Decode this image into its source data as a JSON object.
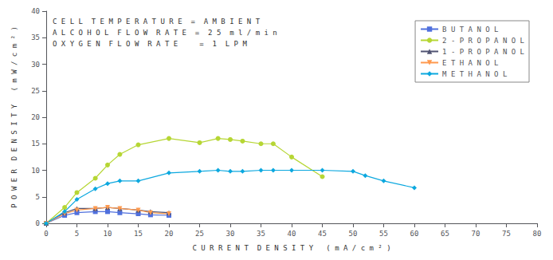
{
  "chart_data": {
    "type": "line",
    "xlabel": "C U R R E N T  D E N S I T Y   ( m A / c m ² )",
    "ylabel": "P O W E R  D E N S I T Y   ( m W / c m ² )",
    "annotations": [
      "C E L L  T E M P E R A T U R E  =  A M B I E N T",
      "A L C O H O L  F L O W  R A T E  =  2 5  m l / m i n",
      "O X Y G E N  F L O W  R A T E     =  1  L P M"
    ],
    "xlim": [
      0,
      80
    ],
    "ylim": [
      0,
      40
    ],
    "xticks": [
      0,
      5,
      10,
      15,
      20,
      25,
      30,
      35,
      40,
      45,
      50,
      55,
      60,
      65,
      70,
      75,
      80
    ],
    "yticks": [
      0,
      5,
      10,
      15,
      20,
      25,
      30,
      35,
      40
    ],
    "grid": false,
    "legend": "upper right",
    "series": [
      {
        "name": "B U T A N O L",
        "marker": "square",
        "x": [
          0,
          3,
          5,
          8,
          10,
          12,
          15,
          17,
          20
        ],
        "values": [
          0,
          1.5,
          2.0,
          2.2,
          2.2,
          2.0,
          1.8,
          1.6,
          1.5
        ]
      },
      {
        "name": "2 - P R O P A N O L",
        "marker": "circle",
        "x": [
          0,
          3,
          5,
          8,
          10,
          12,
          15,
          20,
          25,
          28,
          30,
          32,
          35,
          37,
          40,
          45
        ],
        "values": [
          0,
          3.0,
          5.8,
          8.5,
          11.0,
          13.0,
          14.8,
          16.0,
          15.2,
          16.0,
          15.8,
          15.5,
          15.0,
          15.0,
          12.5,
          8.8
        ]
      },
      {
        "name": "1 - P R O P A N O L",
        "marker": "triangle-up",
        "x": [
          0,
          3,
          5,
          8,
          10,
          12,
          15,
          17,
          20
        ],
        "values": [
          0,
          2.0,
          2.8,
          2.8,
          3.0,
          2.8,
          2.5,
          2.2,
          2.0
        ]
      },
      {
        "name": "E T H A N O L",
        "marker": "triangle-down",
        "x": [
          0,
          3,
          5,
          8,
          10,
          12,
          15,
          17,
          20
        ],
        "values": [
          0,
          1.8,
          2.5,
          2.8,
          3.0,
          2.8,
          2.5,
          2.0,
          1.8
        ]
      },
      {
        "name": "M E T H A N O L",
        "marker": "diamond",
        "x": [
          0,
          3,
          5,
          8,
          10,
          12,
          15,
          20,
          25,
          28,
          30,
          32,
          35,
          37,
          40,
          45,
          50,
          52,
          55,
          60
        ],
        "values": [
          0,
          2.2,
          4.5,
          6.5,
          7.5,
          8.0,
          8.0,
          9.5,
          9.8,
          10.0,
          9.8,
          9.8,
          10.0,
          10.0,
          10.0,
          10.0,
          9.8,
          9.0,
          8.0,
          6.7
        ]
      }
    ]
  }
}
